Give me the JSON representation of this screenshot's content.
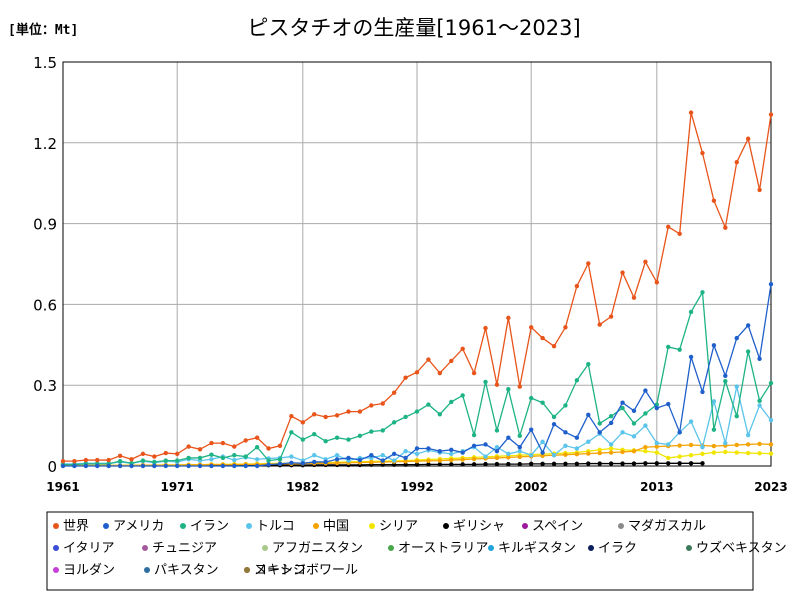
{
  "unit_label": "[単位：Mt]",
  "chart_data": {
    "type": "line",
    "title": "ピスタチオの生産量[1961～2023]",
    "unit": "[単位：Mt]",
    "xlim": [
      1961,
      2023
    ],
    "ylim": [
      0,
      1.5
    ],
    "x_tick_labels": [
      "1961",
      "1971",
      "1982",
      "1992",
      "2002",
      "2013",
      "2023"
    ],
    "x_tick_values": [
      1961,
      1971,
      1982,
      1992,
      2002,
      2013,
      2023
    ],
    "y_ticks": [
      0,
      0.3,
      0.6,
      0.9,
      1.2,
      1.5
    ],
    "y_tick_labels": [
      "0",
      "0.3",
      "0.6",
      "0.9",
      "1.2",
      "1.5"
    ],
    "grid": true,
    "legend_position": "bottom",
    "series": [
      {
        "name": "世界",
        "color": "#e8541a",
        "x_start": 1961,
        "values": [
          0.018,
          0.018,
          0.022,
          0.022,
          0.022,
          0.038,
          0.025,
          0.045,
          0.035,
          0.048,
          0.045,
          0.072,
          0.062,
          0.085,
          0.085,
          0.072,
          0.095,
          0.105,
          0.065,
          0.075,
          0.185,
          0.162,
          0.192,
          0.182,
          0.188,
          0.202,
          0.202,
          0.225,
          0.232,
          0.272,
          0.328,
          0.348,
          0.395,
          0.345,
          0.39,
          0.435,
          0.345,
          0.512,
          0.302,
          0.55,
          0.295,
          0.515,
          0.475,
          0.445,
          0.515,
          0.668,
          0.752,
          0.525,
          0.555,
          0.718,
          0.625,
          0.758,
          0.682,
          0.888,
          0.862,
          1.312,
          1.162,
          0.985,
          0.885,
          1.128,
          1.215,
          1.025,
          1.305
        ]
      },
      {
        "name": "アメリカ",
        "color": "#1f5fcc",
        "x_start": 1961,
        "values": [
          0,
          0,
          0,
          0,
          0,
          0,
          0,
          0,
          0,
          0,
          0,
          0,
          0,
          0,
          0,
          0,
          0,
          0,
          0.005,
          0.008,
          0.012,
          0.01,
          0.015,
          0.015,
          0.025,
          0.03,
          0.022,
          0.04,
          0.02,
          0.045,
          0.03,
          0.065,
          0.065,
          0.055,
          0.06,
          0.05,
          0.075,
          0.08,
          0.055,
          0.105,
          0.07,
          0.135,
          0.05,
          0.155,
          0.125,
          0.105,
          0.19,
          0.125,
          0.16,
          0.235,
          0.205,
          0.28,
          0.215,
          0.23,
          0.125,
          0.405,
          0.275,
          0.448,
          0.335,
          0.475,
          0.522,
          0.398,
          0.675
        ]
      },
      {
        "name": "イラン",
        "color": "#1db385",
        "x_start": 1961,
        "values": [
          0.005,
          0.005,
          0.008,
          0.008,
          0.008,
          0.018,
          0.01,
          0.02,
          0.015,
          0.02,
          0.02,
          0.03,
          0.03,
          0.042,
          0.03,
          0.04,
          0.035,
          0.07,
          0.02,
          0.025,
          0.125,
          0.098,
          0.118,
          0.092,
          0.105,
          0.098,
          0.112,
          0.128,
          0.132,
          0.162,
          0.182,
          0.202,
          0.228,
          0.192,
          0.238,
          0.262,
          0.115,
          0.312,
          0.132,
          0.285,
          0.112,
          0.252,
          0.235,
          0.182,
          0.225,
          0.318,
          0.378,
          0.158,
          0.185,
          0.215,
          0.158,
          0.195,
          0.228,
          0.442,
          0.432,
          0.572,
          0.645,
          0.135,
          0.315,
          0.185,
          0.425,
          0.242,
          0.308
        ]
      },
      {
        "name": "トルコ",
        "color": "#5bc4ea",
        "x_start": 1961,
        "values": [
          0.008,
          0.008,
          0.01,
          0.01,
          0.01,
          0.015,
          0.01,
          0.018,
          0.012,
          0.018,
          0.015,
          0.025,
          0.02,
          0.025,
          0.035,
          0.022,
          0.032,
          0.025,
          0.028,
          0.03,
          0.035,
          0.02,
          0.04,
          0.025,
          0.04,
          0.02,
          0.03,
          0.03,
          0.04,
          0.02,
          0.055,
          0.045,
          0.058,
          0.05,
          0.045,
          0.055,
          0.07,
          0.035,
          0.07,
          0.045,
          0.055,
          0.04,
          0.09,
          0.04,
          0.075,
          0.065,
          0.09,
          0.12,
          0.08,
          0.125,
          0.11,
          0.15,
          0.085,
          0.08,
          0.125,
          0.165,
          0.07,
          0.24,
          0.085,
          0.295,
          0.115,
          0.225,
          0.17
        ]
      },
      {
        "name": "中国",
        "color": "#f4a300",
        "x_start": 1961,
        "values": [
          0.002,
          0.002,
          0.002,
          0.002,
          0.002,
          0.002,
          0.002,
          0.003,
          0.003,
          0.003,
          0.003,
          0.004,
          0.004,
          0.005,
          0.005,
          0.005,
          0.006,
          0.006,
          0.007,
          0.008,
          0.008,
          0.009,
          0.01,
          0.01,
          0.011,
          0.012,
          0.013,
          0.014,
          0.015,
          0.016,
          0.017,
          0.018,
          0.019,
          0.02,
          0.022,
          0.024,
          0.026,
          0.028,
          0.03,
          0.032,
          0.034,
          0.036,
          0.038,
          0.04,
          0.042,
          0.044,
          0.046,
          0.048,
          0.05,
          0.052,
          0.055,
          0.07,
          0.072,
          0.074,
          0.076,
          0.078,
          0.076,
          0.074,
          0.076,
          0.078,
          0.08,
          0.082,
          0.08
        ]
      },
      {
        "name": "シリア",
        "color": "#f2e600",
        "x_start": 1961,
        "values": [
          0.001,
          0.001,
          0.001,
          0.002,
          0.002,
          0.002,
          0.003,
          0.003,
          0.003,
          0.004,
          0.004,
          0.005,
          0.005,
          0.006,
          0.006,
          0.007,
          0.007,
          0.008,
          0.009,
          0.01,
          0.01,
          0.011,
          0.012,
          0.013,
          0.014,
          0.015,
          0.016,
          0.017,
          0.018,
          0.019,
          0.02,
          0.022,
          0.024,
          0.026,
          0.028,
          0.03,
          0.032,
          0.034,
          0.036,
          0.038,
          0.04,
          0.042,
          0.044,
          0.046,
          0.048,
          0.05,
          0.055,
          0.06,
          0.065,
          0.06,
          0.058,
          0.055,
          0.05,
          0.03,
          0.035,
          0.04,
          0.045,
          0.05,
          0.052,
          0.05,
          0.048,
          0.047,
          0.046
        ]
      },
      {
        "name": "ギリシャ",
        "color": "#000000",
        "x_start": 1961,
        "values": [
          0.001,
          0.001,
          0.001,
          0.001,
          0.001,
          0.001,
          0.001,
          0.001,
          0.001,
          0.002,
          0.002,
          0.002,
          0.002,
          0.002,
          0.002,
          0.002,
          0.002,
          0.003,
          0.003,
          0.003,
          0.003,
          0.003,
          0.004,
          0.004,
          0.004,
          0.004,
          0.004,
          0.005,
          0.005,
          0.005,
          0.005,
          0.005,
          0.006,
          0.006,
          0.006,
          0.006,
          0.006,
          0.007,
          0.007,
          0.007,
          0.007,
          0.008,
          0.008,
          0.008,
          0.008,
          0.008,
          0.009,
          0.009,
          0.009,
          0.009,
          0.009,
          0.01,
          0.01,
          0.01,
          0.01,
          0.01,
          0.01
        ]
      },
      {
        "name": "スペイン",
        "color": "#9b1a9b",
        "x_start": 1961,
        "values": []
      },
      {
        "name": "マダガスカル",
        "color": "#8a8a8a",
        "x_start": 1961,
        "values": []
      },
      {
        "name": "イタリア",
        "color": "#3a4fd6",
        "x_start": 1961,
        "values": []
      },
      {
        "name": "チュニジア",
        "color": "#a65a9e",
        "x_start": 1961,
        "values": []
      },
      {
        "name": "アフガニスタン",
        "color": "#a9c98c",
        "x_start": 1961,
        "values": []
      },
      {
        "name": "オーストラリア",
        "color": "#4aa64a",
        "x_start": 1961,
        "values": []
      },
      {
        "name": "キルギスタン",
        "color": "#1fa3d9",
        "x_start": 1961,
        "values": []
      },
      {
        "name": "イラク",
        "color": "#0b1f5c",
        "x_start": 1961,
        "values": []
      },
      {
        "name": "ウズベキスタン",
        "color": "#3c7a5c",
        "x_start": 1961,
        "values": []
      },
      {
        "name": "ヨルダン",
        "color": "#c83fd8",
        "x_start": 1961,
        "values": []
      },
      {
        "name": "パキスタン",
        "color": "#2f6fa0",
        "x_start": 1961,
        "values": []
      },
      {
        "name": "コートジボワール",
        "color": "#e02424",
        "x_start": 1961,
        "values": []
      },
      {
        "name": "メキシコ",
        "color": "#8f7a3a",
        "x_start": 1961,
        "values": []
      }
    ]
  }
}
